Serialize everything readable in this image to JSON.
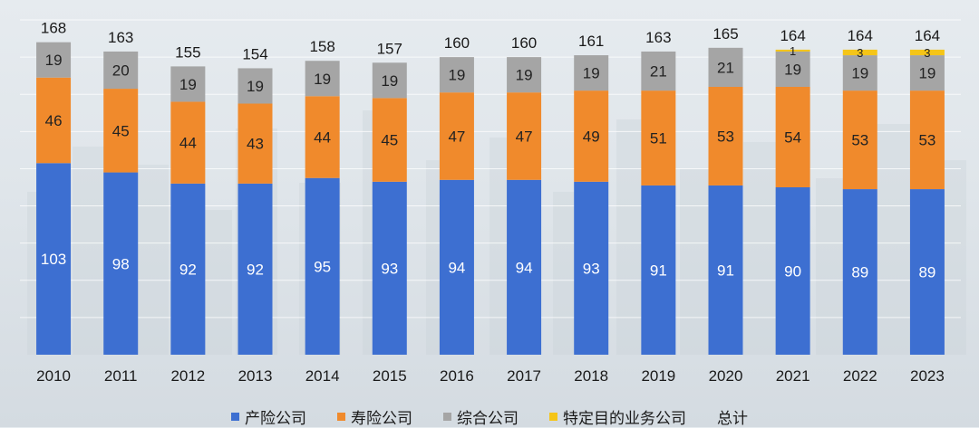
{
  "chart_data": {
    "type": "bar",
    "stacked": true,
    "categories": [
      "2010",
      "2011",
      "2012",
      "2013",
      "2014",
      "2015",
      "2016",
      "2017",
      "2018",
      "2019",
      "2020",
      "2021",
      "2022",
      "2023"
    ],
    "series": [
      {
        "name": "产险公司",
        "color": "#3d6fd1",
        "values": [
          103,
          98,
          92,
          92,
          95,
          93,
          94,
          94,
          93,
          91,
          91,
          90,
          89,
          89
        ]
      },
      {
        "name": "寿险公司",
        "color": "#f08a2c",
        "values": [
          46,
          45,
          44,
          43,
          44,
          45,
          47,
          47,
          49,
          51,
          53,
          54,
          53,
          53
        ]
      },
      {
        "name": "综合公司",
        "color": "#a5a5a5",
        "values": [
          19,
          20,
          19,
          19,
          19,
          19,
          19,
          19,
          19,
          21,
          21,
          19,
          19,
          19
        ]
      },
      {
        "name": "特定目的业务公司",
        "color": "#f5c518",
        "values": [
          null,
          null,
          null,
          null,
          null,
          null,
          null,
          null,
          null,
          null,
          null,
          1,
          3,
          3
        ]
      }
    ],
    "totals_label": "总计",
    "totals": [
      168,
      163,
      155,
      154,
      158,
      157,
      160,
      160,
      161,
      163,
      165,
      164,
      164,
      164
    ],
    "ylim": [
      0,
      180
    ],
    "grid": true,
    "legend_position": "bottom"
  }
}
